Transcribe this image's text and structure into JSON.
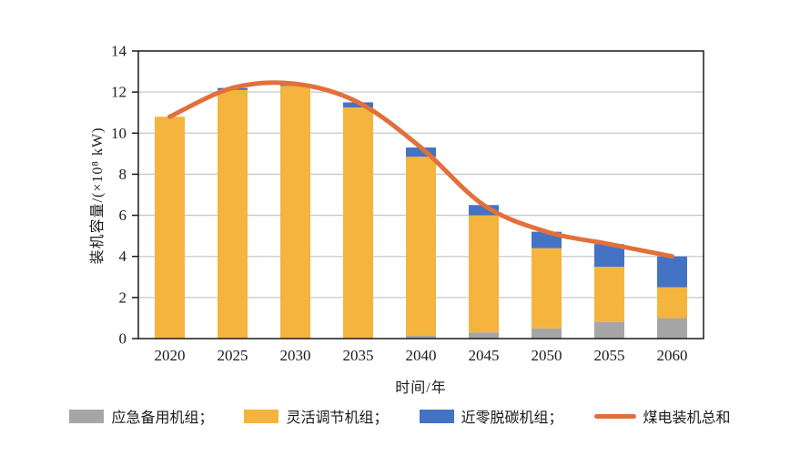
{
  "chart_data": {
    "type": "bar",
    "subtype": "stacked-bar-with-line",
    "title": "",
    "categories": [
      "2020",
      "2025",
      "2030",
      "2035",
      "2040",
      "2045",
      "2050",
      "2055",
      "2060"
    ],
    "series": [
      {
        "name": "应急备用机组",
        "type": "bar",
        "color": "#A6A6A6",
        "values": [
          0,
          0,
          0,
          0,
          0.15,
          0.3,
          0.5,
          0.8,
          1.0
        ]
      },
      {
        "name": "灵活调节机组",
        "type": "bar",
        "color": "#F5B43E",
        "values": [
          10.8,
          12.1,
          12.3,
          11.25,
          8.7,
          5.7,
          3.9,
          2.7,
          1.5
        ]
      },
      {
        "name": "近零脱碳机组",
        "type": "bar",
        "color": "#4472C4",
        "values": [
          0,
          0.1,
          0.1,
          0.25,
          0.45,
          0.5,
          0.8,
          1.1,
          1.5
        ]
      },
      {
        "name": "煤电装机总和",
        "type": "line",
        "color": "#E2703A",
        "values": [
          10.8,
          12.2,
          12.4,
          11.5,
          9.3,
          6.5,
          5.2,
          4.6,
          4.0
        ]
      }
    ],
    "stacked": true,
    "xlabel": "时间/年",
    "ylabel": "装机容量/(×10⁸ kW)",
    "ylim": [
      0,
      14
    ],
    "ytick_step": 2,
    "grid": true,
    "legend_position": "bottom",
    "legend_labels": [
      "应急备用机组；",
      "灵活调节机组；",
      "近零脱碳机组；",
      "煤电装机总和"
    ],
    "colors": {
      "gridline": "#C9C9C9",
      "axis": "#1a1a1a",
      "text": "#1a1a1a",
      "background": "#ffffff"
    }
  }
}
